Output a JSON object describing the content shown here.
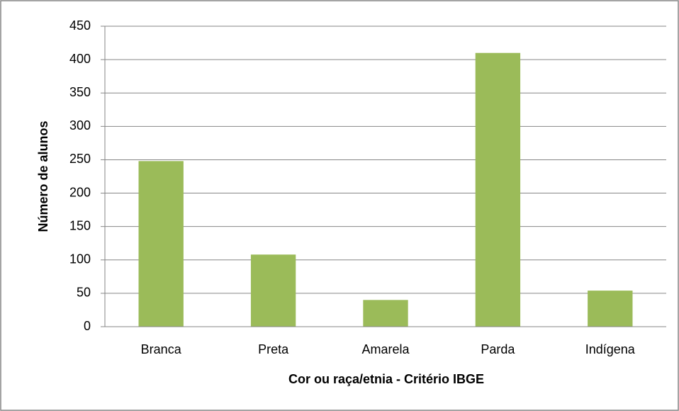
{
  "chart_data": {
    "type": "bar",
    "categories": [
      "Branca",
      "Preta",
      "Amarela",
      "Parda",
      "Indígena"
    ],
    "values": [
      248,
      108,
      40,
      410,
      54
    ],
    "color": "#9bbb59",
    "ylim": [
      0,
      450
    ],
    "yticks": [
      0,
      50,
      100,
      150,
      200,
      250,
      300,
      350,
      400,
      450
    ],
    "grid": true,
    "y_label": "Número de alunos",
    "x_label": "Cor ou raça/etnia - Critério IBGE"
  }
}
